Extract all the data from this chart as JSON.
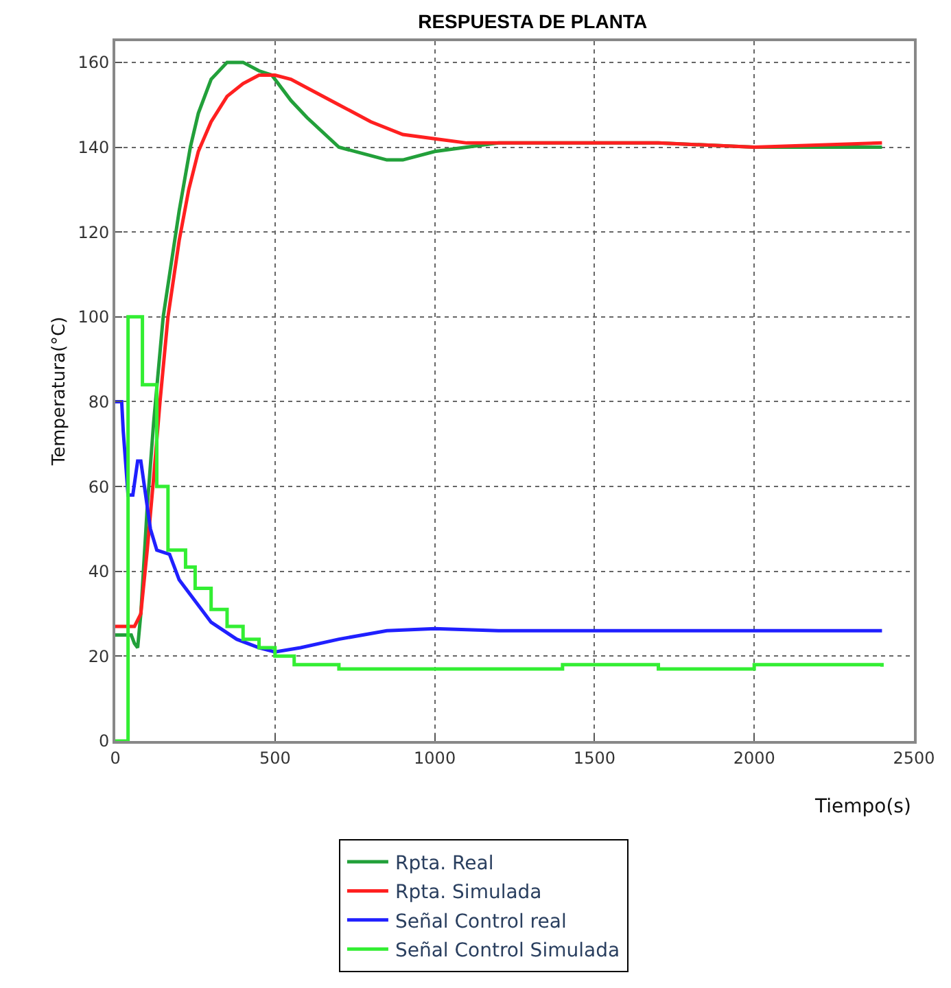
{
  "chart_data": {
    "type": "line",
    "title": "RESPUESTA DE PLANTA",
    "xlabel": "Tiempo(s)",
    "ylabel": "Temperatura(°C)",
    "xlim": [
      0,
      2500
    ],
    "xticks": [
      0,
      500,
      1000,
      1500,
      2000,
      2500
    ],
    "ylim": [
      0,
      165
    ],
    "yticks": [
      0,
      20,
      40,
      60,
      80,
      100,
      120,
      140,
      160
    ],
    "grid": true,
    "legend": "bottom",
    "series": [
      {
        "name": "Rpta. Real",
        "color": "#22a03a",
        "x": [
          0,
          50,
          60,
          70,
          80,
          100,
          120,
          150,
          170,
          200,
          235,
          260,
          300,
          350,
          400,
          450,
          490,
          550,
          600,
          700,
          800,
          850,
          900,
          1000,
          1100,
          1200,
          1500,
          1700,
          2000,
          2400
        ],
        "values": [
          25,
          25,
          23,
          22,
          30,
          55,
          75,
          100,
          110,
          125,
          140,
          148,
          156,
          160,
          160,
          158,
          157,
          151,
          147,
          140,
          138,
          137,
          137,
          139,
          140,
          141,
          141,
          141,
          140,
          140
        ]
      },
      {
        "name": "Rpta. Simulada",
        "color": "#ff2020",
        "x": [
          0,
          60,
          80,
          100,
          120,
          140,
          165,
          200,
          230,
          260,
          300,
          350,
          400,
          450,
          500,
          550,
          600,
          700,
          800,
          900,
          1000,
          1100,
          1200,
          1500,
          1700,
          2000,
          2400
        ],
        "values": [
          27,
          27,
          30,
          45,
          62,
          80,
          100,
          118,
          130,
          139,
          146,
          152,
          155,
          157,
          157,
          156,
          154,
          150,
          146,
          143,
          142,
          141,
          141,
          141,
          141,
          140,
          141
        ]
      },
      {
        "name": "Señal Control real",
        "color": "#2020ff",
        "x": [
          0,
          20,
          25,
          40,
          55,
          70,
          80,
          95,
          110,
          130,
          170,
          200,
          250,
          300,
          380,
          450,
          500,
          580,
          700,
          850,
          1000,
          1200,
          1500,
          2000,
          2400
        ],
        "values": [
          80,
          80,
          73,
          58,
          58,
          66,
          66,
          58,
          50,
          45,
          44,
          38,
          33,
          28,
          24,
          22,
          21,
          22,
          24,
          26,
          26.5,
          26,
          26,
          26,
          26
        ]
      },
      {
        "name": "Señal Control Simulada",
        "color": "#33ee33",
        "type": "step",
        "x": [
          0,
          40,
          85,
          130,
          165,
          220,
          250,
          300,
          350,
          400,
          450,
          500,
          560,
          700,
          1000,
          1400,
          1700,
          2000,
          2400
        ],
        "values": [
          0,
          100,
          84,
          60,
          45,
          41,
          36,
          31,
          27,
          24,
          22,
          20,
          18,
          17,
          17,
          18,
          17,
          18,
          17.5
        ]
      }
    ]
  }
}
